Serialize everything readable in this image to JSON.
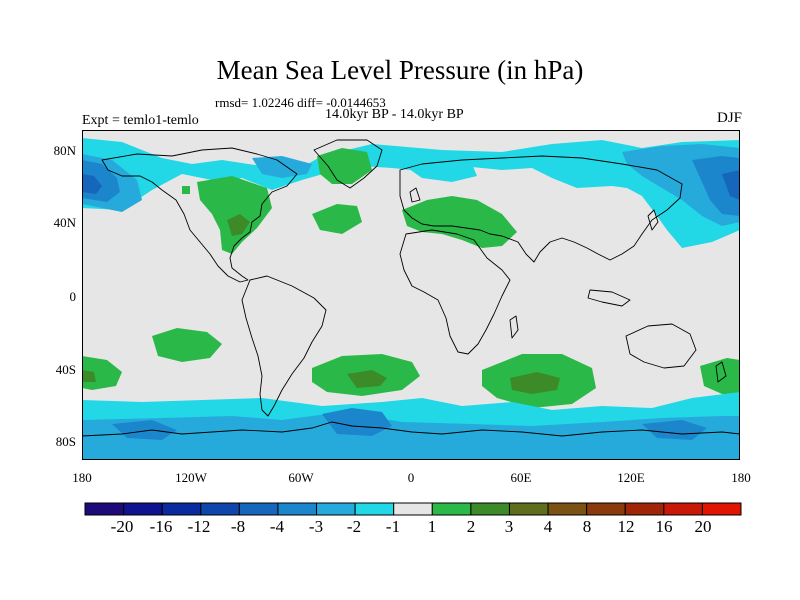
{
  "title": "Mean Sea Level Pressure (in hPa)",
  "stats": "rmsd= 1.02246  diff= -0.0144653",
  "period": "14.0kyr BP - 14.0kyr BP",
  "experiment": "Expt = temlo1-temlo",
  "season": "DJF",
  "lat_labels": [
    "80N",
    "40N",
    "0",
    "40S",
    "80S"
  ],
  "lon_labels": [
    "180",
    "120W",
    "60W",
    "0",
    "60E",
    "120E",
    "180"
  ],
  "colorbar": {
    "labels": [
      "-20",
      "-16",
      "-12",
      "-8",
      "-4",
      "-3",
      "-2",
      "-1",
      "1",
      "2",
      "3",
      "4",
      "8",
      "12",
      "16",
      "20"
    ],
    "colors": [
      "#1e0a78",
      "#10128e",
      "#0a2aa0",
      "#0e46ac",
      "#1666bc",
      "#1c86cc",
      "#26aadb",
      "#22d8e6",
      "#e6e6e6",
      "#2ab948",
      "#3c8a28",
      "#5e6e1c",
      "#7a5214",
      "#8a3a0c",
      "#a02408",
      "#c81808",
      "#e01400"
    ]
  },
  "map_colors": {
    "ocean": "#e6e6e6",
    "coast": "#000000"
  }
}
